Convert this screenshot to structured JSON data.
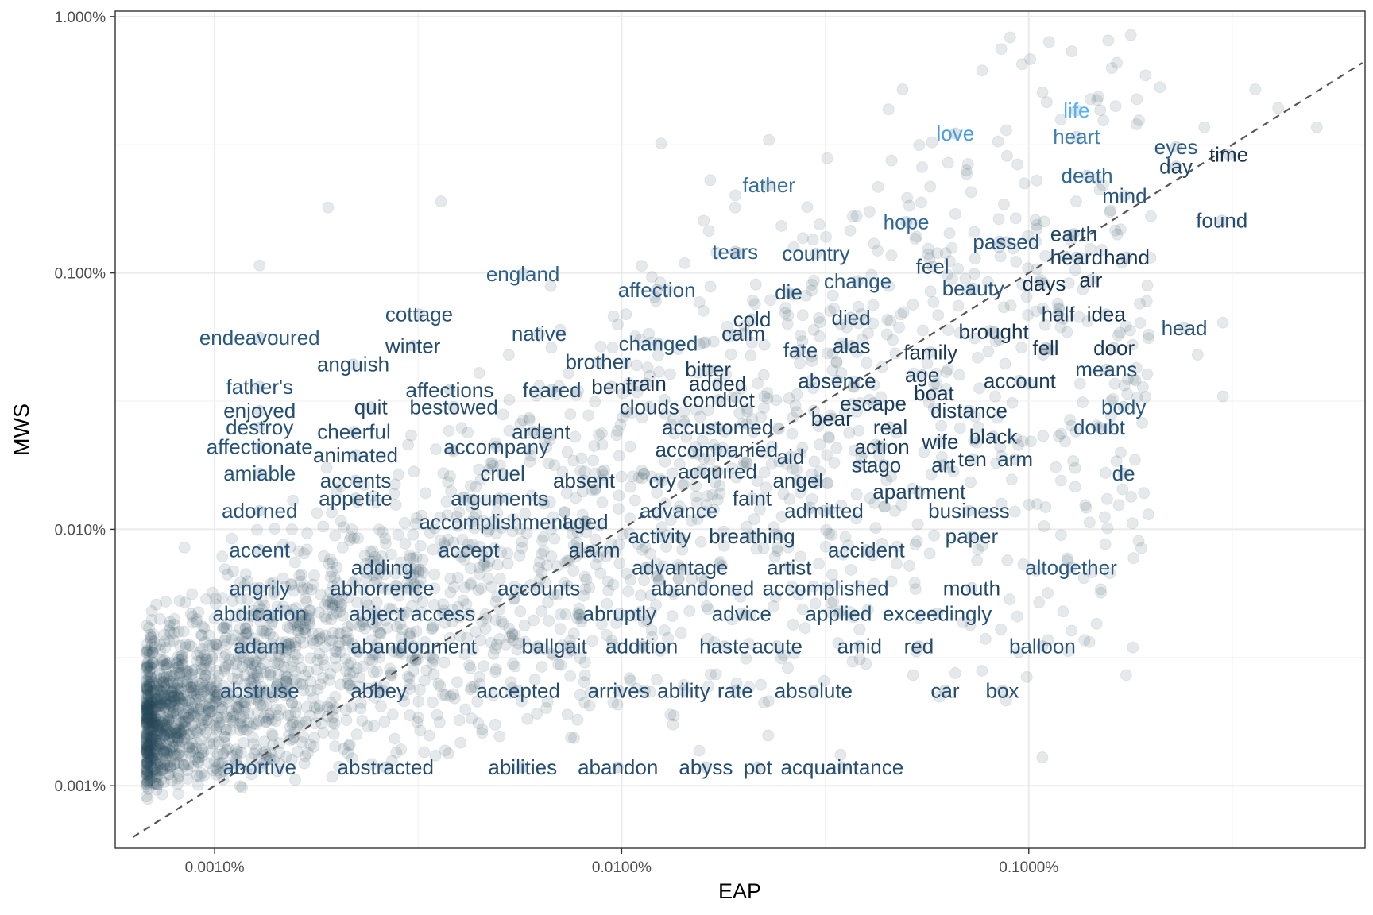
{
  "chart_data": {
    "type": "scatter",
    "xlabel": "EAP",
    "ylabel": "MWS",
    "x_scale": "log10",
    "y_scale": "log10",
    "xlim": [
      5.7e-06,
      0.0067
    ],
    "ylim": [
      5.7e-06,
      0.0105
    ],
    "x_ticks": [
      {
        "value": 1e-05,
        "label": "0.0010%"
      },
      {
        "value": 0.0001,
        "label": "0.0100%"
      },
      {
        "value": 0.001,
        "label": "0.1000%"
      }
    ],
    "y_ticks": [
      {
        "value": 1e-05,
        "label": "0.001%"
      },
      {
        "value": 0.0001,
        "label": "0.010%"
      },
      {
        "value": 0.001,
        "label": "0.100%"
      },
      {
        "value": 0.01,
        "label": "1.000%"
      }
    ],
    "grid": true,
    "reference_line": {
      "slope": 1,
      "style": "dashed"
    },
    "background_points": {
      "count": 2600,
      "color": "#2c4a5e",
      "opacity": 0.12
    },
    "color_gradient": {
      "low": "#132b43",
      "high": "#56b1f7"
    },
    "extra_points": [
      [
        0.0009,
        0.0083
      ],
      [
        0.0016,
        0.0063
      ],
      [
        0.0021,
        0.0053
      ],
      [
        0.0036,
        0.0052
      ],
      [
        0.00049,
        0.0052
      ],
      [
        0.0041,
        0.0044
      ],
      [
        0.0051,
        0.0037
      ],
      [
        0.0027,
        0.0037
      ],
      [
        0.000125,
        0.0032
      ],
      [
        0.00023,
        0.0033
      ],
      [
        0.00032,
        0.0028
      ],
      [
        0.000165,
        0.0023
      ],
      [
        0.00019,
        0.0018
      ],
      [
        1.9e-05,
        0.0018
      ],
      [
        3.6e-05,
        0.0019
      ],
      [
        1.29e-05,
        0.00107
      ],
      [
        0.003,
        0.00064
      ],
      [
        0.0026,
        0.00048
      ],
      [
        0.003,
        0.00033
      ],
      [
        0.0019,
        0.00026
      ],
      [
        0.0012,
        0.000155
      ],
      [
        0.0011,
        0.000122
      ],
      [
        0.00137,
        3.7e-05
      ],
      [
        0.00125,
        3.35e-05
      ],
      [
        0.00088,
        2.15e-05
      ],
      [
        0.00108,
        1.29e-05
      ],
      [
        0.00066,
        2.75e-05
      ],
      [
        0.00052,
        2.7e-05
      ],
      [
        0.000345,
        1.32e-05
      ],
      [
        0.000229,
        1.57e-05
      ],
      [
        0.000155,
        1.37e-05
      ]
    ],
    "words": [
      {
        "word": "life",
        "x": 0.00131,
        "y": 0.0043,
        "c": 1.0
      },
      {
        "word": "love",
        "x": 0.00066,
        "y": 0.0035,
        "c": 0.85
      },
      {
        "word": "heart",
        "x": 0.00131,
        "y": 0.0034,
        "c": 0.62
      },
      {
        "word": "father",
        "x": 0.00023,
        "y": 0.0022,
        "c": 0.5
      },
      {
        "word": "eyes",
        "x": 0.0023,
        "y": 0.0031,
        "c": 0.35
      },
      {
        "word": "time",
        "x": 0.0031,
        "y": 0.0029,
        "c": 0.05
      },
      {
        "word": "day",
        "x": 0.0023,
        "y": 0.0026,
        "c": 0.2
      },
      {
        "word": "death",
        "x": 0.00139,
        "y": 0.0024,
        "c": 0.45
      },
      {
        "word": "mind",
        "x": 0.00172,
        "y": 0.002,
        "c": 0.3
      },
      {
        "word": "found",
        "x": 0.00298,
        "y": 0.0016,
        "c": 0.25
      },
      {
        "word": "hope",
        "x": 0.0005,
        "y": 0.00158,
        "c": 0.45
      },
      {
        "word": "earth",
        "x": 0.00129,
        "y": 0.00142,
        "c": 0.2
      },
      {
        "word": "passed",
        "x": 0.00088,
        "y": 0.00132,
        "c": 0.3
      },
      {
        "word": "tears",
        "x": 0.00019,
        "y": 0.00121,
        "c": 0.4
      },
      {
        "word": "country",
        "x": 0.0003,
        "y": 0.00119,
        "c": 0.35
      },
      {
        "word": "heard",
        "x": 0.00131,
        "y": 0.00115,
        "c": 0.15
      },
      {
        "word": "hand",
        "x": 0.00174,
        "y": 0.00115,
        "c": 0.1
      },
      {
        "word": "feel",
        "x": 0.00058,
        "y": 0.00106,
        "c": 0.25
      },
      {
        "word": "england",
        "x": 5.72e-05,
        "y": 0.00099,
        "c": 0.4
      },
      {
        "word": "air",
        "x": 0.00142,
        "y": 0.00094,
        "c": 0.05
      },
      {
        "word": "change",
        "x": 0.00038,
        "y": 0.00093,
        "c": 0.35
      },
      {
        "word": "days",
        "x": 0.00109,
        "y": 0.00091,
        "c": 0.05
      },
      {
        "word": "affection",
        "x": 0.000122,
        "y": 0.00086,
        "c": 0.35
      },
      {
        "word": "beauty",
        "x": 0.00073,
        "y": 0.00087,
        "c": 0.3
      },
      {
        "word": "die",
        "x": 0.000257,
        "y": 0.00084,
        "c": 0.3
      },
      {
        "word": "half",
        "x": 0.00118,
        "y": 0.00069,
        "c": 0.15
      },
      {
        "word": "idea",
        "x": 0.00155,
        "y": 0.00069,
        "c": 0.05
      },
      {
        "word": "cottage",
        "x": 3.18e-05,
        "y": 0.00069,
        "c": 0.3
      },
      {
        "word": "died",
        "x": 0.000366,
        "y": 0.00067,
        "c": 0.25
      },
      {
        "word": "cold",
        "x": 0.000209,
        "y": 0.00066,
        "c": 0.2
      },
      {
        "word": "head",
        "x": 0.00241,
        "y": 0.00061,
        "c": 0.3
      },
      {
        "word": "brought",
        "x": 0.00082,
        "y": 0.00059,
        "c": 0.1
      },
      {
        "word": "native",
        "x": 6.27e-05,
        "y": 0.00058,
        "c": 0.3
      },
      {
        "word": "calm",
        "x": 0.000199,
        "y": 0.00058,
        "c": 0.2
      },
      {
        "word": "endeavoured",
        "x": 1.29e-05,
        "y": 0.00056,
        "c": 0.35
      },
      {
        "word": "changed",
        "x": 0.000123,
        "y": 0.00053,
        "c": 0.3
      },
      {
        "word": "winter",
        "x": 3.07e-05,
        "y": 0.00052,
        "c": 0.25
      },
      {
        "word": "alas",
        "x": 0.000367,
        "y": 0.00052,
        "c": 0.2
      },
      {
        "word": "fell",
        "x": 0.0011,
        "y": 0.00051,
        "c": 0.1
      },
      {
        "word": "door",
        "x": 0.00162,
        "y": 0.00051,
        "c": 0.1
      },
      {
        "word": "fate",
        "x": 0.000275,
        "y": 0.0005,
        "c": 0.25
      },
      {
        "word": "family",
        "x": 0.000574,
        "y": 0.00049,
        "c": 0.1
      },
      {
        "word": "anguish",
        "x": 2.19e-05,
        "y": 0.00044,
        "c": 0.25
      },
      {
        "word": "brother",
        "x": 8.75e-05,
        "y": 0.00045,
        "c": 0.25
      },
      {
        "word": "bitter",
        "x": 0.000163,
        "y": 0.00042,
        "c": 0.15
      },
      {
        "word": "means",
        "x": 0.00155,
        "y": 0.00042,
        "c": 0.25
      },
      {
        "word": "age",
        "x": 0.000547,
        "y": 0.0004,
        "c": 0.15
      },
      {
        "word": "absence",
        "x": 0.000338,
        "y": 0.00038,
        "c": 0.2
      },
      {
        "word": "account",
        "x": 0.00095,
        "y": 0.00038,
        "c": 0.15
      },
      {
        "word": "father's",
        "x": 1.29e-05,
        "y": 0.00036,
        "c": 0.3
      },
      {
        "word": "train",
        "x": 0.000115,
        "y": 0.00037,
        "c": 0.1
      },
      {
        "word": "added",
        "x": 0.000172,
        "y": 0.00037,
        "c": 0.1
      },
      {
        "word": "affections",
        "x": 3.78e-05,
        "y": 0.00035,
        "c": 0.25
      },
      {
        "word": "feared",
        "x": 6.74e-05,
        "y": 0.00035,
        "c": 0.25
      },
      {
        "word": "bent",
        "x": 9.44e-05,
        "y": 0.00036,
        "c": 0.1
      },
      {
        "word": "boat",
        "x": 0.000585,
        "y": 0.00034,
        "c": 0.1
      },
      {
        "word": "conduct",
        "x": 0.000173,
        "y": 0.00032,
        "c": 0.15
      },
      {
        "word": "escape",
        "x": 0.000415,
        "y": 0.00031,
        "c": 0.15
      },
      {
        "word": "enjoyed",
        "x": 1.29e-05,
        "y": 0.00029,
        "c": 0.25
      },
      {
        "word": "quit",
        "x": 2.42e-05,
        "y": 0.0003,
        "c": 0.2
      },
      {
        "word": "bestowed",
        "x": 3.87e-05,
        "y": 0.0003,
        "c": 0.25
      },
      {
        "word": "clouds",
        "x": 0.000117,
        "y": 0.0003,
        "c": 0.2
      },
      {
        "word": "body",
        "x": 0.00171,
        "y": 0.0003,
        "c": 0.35
      },
      {
        "word": "distance",
        "x": 0.000713,
        "y": 0.00029,
        "c": 0.15
      },
      {
        "word": "bear",
        "x": 0.000328,
        "y": 0.00027,
        "c": 0.1
      },
      {
        "word": "destroy",
        "x": 1.29e-05,
        "y": 0.00025,
        "c": 0.3
      },
      {
        "word": "real",
        "x": 0.000457,
        "y": 0.00025,
        "c": 0.15
      },
      {
        "word": "accustomed",
        "x": 0.000172,
        "y": 0.00025,
        "c": 0.2
      },
      {
        "word": "doubt",
        "x": 0.00149,
        "y": 0.00025,
        "c": 0.3
      },
      {
        "word": "cheerful",
        "x": 2.2e-05,
        "y": 0.00024,
        "c": 0.25
      },
      {
        "word": "ardent",
        "x": 6.34e-05,
        "y": 0.00024,
        "c": 0.2
      },
      {
        "word": "black",
        "x": 0.000818,
        "y": 0.00023,
        "c": 0.15
      },
      {
        "word": "wife",
        "x": 0.000606,
        "y": 0.00022,
        "c": 0.15
      },
      {
        "word": "action",
        "x": 0.000436,
        "y": 0.00021,
        "c": 0.15
      },
      {
        "word": "affectionate",
        "x": 1.29e-05,
        "y": 0.00021,
        "c": 0.3
      },
      {
        "word": "accompany",
        "x": 4.92e-05,
        "y": 0.00021,
        "c": 0.25
      },
      {
        "word": "accompanied",
        "x": 0.000171,
        "y": 0.000205,
        "c": 0.2
      },
      {
        "word": "animated",
        "x": 2.22e-05,
        "y": 0.000195,
        "c": 0.25
      },
      {
        "word": "aid",
        "x": 0.00026,
        "y": 0.000192,
        "c": 0.2
      },
      {
        "word": "ten",
        "x": 0.000727,
        "y": 0.000188,
        "c": 0.15
      },
      {
        "word": "arm",
        "x": 0.000926,
        "y": 0.000188,
        "c": 0.2
      },
      {
        "word": "art",
        "x": 0.000617,
        "y": 0.000178,
        "c": 0.2
      },
      {
        "word": "st",
        "x": 0.000384,
        "y": 0.000178,
        "c": 0.2
      },
      {
        "word": "ago",
        "x": 0.000441,
        "y": 0.000178,
        "c": 0.2
      },
      {
        "word": "amiable",
        "x": 1.29e-05,
        "y": 0.000165,
        "c": 0.3
      },
      {
        "word": "cruel",
        "x": 5.1e-05,
        "y": 0.000165,
        "c": 0.25
      },
      {
        "word": "acquired",
        "x": 0.000172,
        "y": 0.000168,
        "c": 0.2
      },
      {
        "word": "de",
        "x": 0.00171,
        "y": 0.000165,
        "c": 0.3
      },
      {
        "word": "accents",
        "x": 2.22e-05,
        "y": 0.000155,
        "c": 0.25
      },
      {
        "word": "absent",
        "x": 8.08e-05,
        "y": 0.000155,
        "c": 0.2
      },
      {
        "word": "cry",
        "x": 0.000126,
        "y": 0.000155,
        "c": 0.2
      },
      {
        "word": "angel",
        "x": 0.000271,
        "y": 0.000155,
        "c": 0.2
      },
      {
        "word": "apartment",
        "x": 0.000538,
        "y": 0.00014,
        "c": 0.2
      },
      {
        "word": "appetite",
        "x": 2.22e-05,
        "y": 0.000132,
        "c": 0.25
      },
      {
        "word": "arguments",
        "x": 5.01e-05,
        "y": 0.000132,
        "c": 0.25
      },
      {
        "word": "faint",
        "x": 0.000209,
        "y": 0.000132,
        "c": 0.2
      },
      {
        "word": "adorned",
        "x": 1.29e-05,
        "y": 0.000118,
        "c": 0.3
      },
      {
        "word": "advance",
        "x": 0.000138,
        "y": 0.000118,
        "c": 0.25
      },
      {
        "word": "admitted",
        "x": 0.000314,
        "y": 0.000118,
        "c": 0.25
      },
      {
        "word": "business",
        "x": 0.000713,
        "y": 0.000118,
        "c": 0.25
      },
      {
        "word": "accomplishment",
        "x": 4.85e-05,
        "y": 0.000107,
        "c": 0.25
      },
      {
        "word": "aged",
        "x": 8.14e-05,
        "y": 0.000107,
        "c": 0.2
      },
      {
        "word": "activity",
        "x": 0.000124,
        "y": 9.4e-05,
        "c": 0.25
      },
      {
        "word": "breathing",
        "x": 0.000209,
        "y": 9.4e-05,
        "c": 0.2
      },
      {
        "word": "paper",
        "x": 0.000724,
        "y": 9.4e-05,
        "c": 0.25
      },
      {
        "word": "accent",
        "x": 1.29e-05,
        "y": 8.3e-05,
        "c": 0.3
      },
      {
        "word": "accept",
        "x": 4.21e-05,
        "y": 8.3e-05,
        "c": 0.25
      },
      {
        "word": "alarm",
        "x": 8.57e-05,
        "y": 8.3e-05,
        "c": 0.2
      },
      {
        "word": "accident",
        "x": 0.000399,
        "y": 8.3e-05,
        "c": 0.25
      },
      {
        "word": "adding",
        "x": 2.58e-05,
        "y": 7.1e-05,
        "c": 0.25
      },
      {
        "word": "advantage",
        "x": 0.000139,
        "y": 7.1e-05,
        "c": 0.25
      },
      {
        "word": "artist",
        "x": 0.000258,
        "y": 7.1e-05,
        "c": 0.2
      },
      {
        "word": "altogether",
        "x": 0.00127,
        "y": 7.1e-05,
        "c": 0.35
      },
      {
        "word": "angrily",
        "x": 1.29e-05,
        "y": 5.9e-05,
        "c": 0.3
      },
      {
        "word": "abhorrence",
        "x": 2.58e-05,
        "y": 5.9e-05,
        "c": 0.25
      },
      {
        "word": "accounts",
        "x": 6.26e-05,
        "y": 5.9e-05,
        "c": 0.25
      },
      {
        "word": "abandoned",
        "x": 0.000158,
        "y": 5.9e-05,
        "c": 0.25
      },
      {
        "word": "accomplished",
        "x": 0.000317,
        "y": 5.9e-05,
        "c": 0.25
      },
      {
        "word": "mouth",
        "x": 0.000724,
        "y": 5.9e-05,
        "c": 0.2
      },
      {
        "word": "abdication",
        "x": 1.29e-05,
        "y": 4.7e-05,
        "c": 0.3
      },
      {
        "word": "abject",
        "x": 2.5e-05,
        "y": 4.7e-05,
        "c": 0.25
      },
      {
        "word": "access",
        "x": 3.64e-05,
        "y": 4.7e-05,
        "c": 0.25
      },
      {
        "word": "abruptly",
        "x": 9.88e-05,
        "y": 4.7e-05,
        "c": 0.25
      },
      {
        "word": "advice",
        "x": 0.000197,
        "y": 4.7e-05,
        "c": 0.25
      },
      {
        "word": "applied",
        "x": 0.000341,
        "y": 4.7e-05,
        "c": 0.25
      },
      {
        "word": "exceedingly",
        "x": 0.000596,
        "y": 4.7e-05,
        "c": 0.25
      },
      {
        "word": "adam",
        "x": 1.29e-05,
        "y": 3.5e-05,
        "c": 0.3
      },
      {
        "word": "abandonment",
        "x": 3.08e-05,
        "y": 3.5e-05,
        "c": 0.25
      },
      {
        "word": "ball",
        "x": 6.22e-05,
        "y": 3.5e-05,
        "c": 0.25
      },
      {
        "word": "gait",
        "x": 7.48e-05,
        "y": 3.5e-05,
        "c": 0.25
      },
      {
        "word": "addition",
        "x": 0.000112,
        "y": 3.5e-05,
        "c": 0.25
      },
      {
        "word": "haste",
        "x": 0.000179,
        "y": 3.5e-05,
        "c": 0.25
      },
      {
        "word": "acute",
        "x": 0.000241,
        "y": 3.5e-05,
        "c": 0.25
      },
      {
        "word": "amid",
        "x": 0.000384,
        "y": 3.5e-05,
        "c": 0.25
      },
      {
        "word": "red",
        "x": 0.000537,
        "y": 3.5e-05,
        "c": 0.25
      },
      {
        "word": "balloon",
        "x": 0.00108,
        "y": 3.5e-05,
        "c": 0.3
      },
      {
        "word": "abstruse",
        "x": 1.29e-05,
        "y": 2.35e-05,
        "c": 0.3
      },
      {
        "word": "abbey",
        "x": 2.53e-05,
        "y": 2.35e-05,
        "c": 0.25
      },
      {
        "word": "accepted",
        "x": 5.57e-05,
        "y": 2.35e-05,
        "c": 0.25
      },
      {
        "word": "arrives",
        "x": 9.83e-05,
        "y": 2.35e-05,
        "c": 0.25
      },
      {
        "word": "ability",
        "x": 0.000142,
        "y": 2.35e-05,
        "c": 0.25
      },
      {
        "word": "rate",
        "x": 0.00019,
        "y": 2.35e-05,
        "c": 0.25
      },
      {
        "word": "absolute",
        "x": 0.000296,
        "y": 2.35e-05,
        "c": 0.25
      },
      {
        "word": "car",
        "x": 0.000623,
        "y": 2.35e-05,
        "c": 0.25
      },
      {
        "word": "box",
        "x": 0.000861,
        "y": 2.35e-05,
        "c": 0.25
      },
      {
        "word": "abortive",
        "x": 1.29e-05,
        "y": 1.18e-05,
        "c": 0.3
      },
      {
        "word": "abstracted",
        "x": 2.63e-05,
        "y": 1.18e-05,
        "c": 0.25
      },
      {
        "word": "abilities",
        "x": 5.71e-05,
        "y": 1.18e-05,
        "c": 0.25
      },
      {
        "word": "abandon",
        "x": 9.79e-05,
        "y": 1.18e-05,
        "c": 0.25
      },
      {
        "word": "abyss",
        "x": 0.000161,
        "y": 1.18e-05,
        "c": 0.25
      },
      {
        "word": "pot",
        "x": 0.000216,
        "y": 1.18e-05,
        "c": 0.25
      },
      {
        "word": "acquaintance",
        "x": 0.000348,
        "y": 1.18e-05,
        "c": 0.25
      }
    ]
  }
}
